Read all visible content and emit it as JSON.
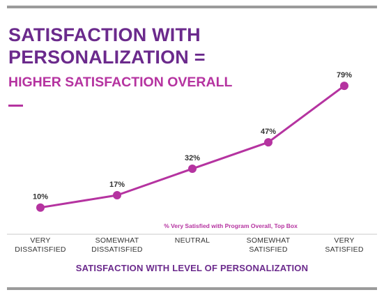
{
  "title_lines": [
    "SATISFACTION WITH",
    "PERSONALIZATION ="
  ],
  "subtitle": "HIGHER SATISFACTION OVERALL",
  "colors": {
    "title": "#6b2a8c",
    "accent": "#b533a0",
    "rule": "#9b9b9b",
    "axis": "#c8c8c8",
    "text": "#333333"
  },
  "chart_data": {
    "type": "line",
    "categories": [
      [
        "VERY",
        "DISSATISFIED"
      ],
      [
        "SOMEWHAT",
        "DISSATISFIED"
      ],
      [
        "NEUTRAL"
      ],
      [
        "SOMEWHAT",
        "SATISFIED"
      ],
      [
        "VERY",
        "SATISFIED"
      ]
    ],
    "values": [
      10,
      17,
      32,
      47,
      79
    ],
    "value_labels": [
      "10%",
      "17%",
      "32%",
      "47%",
      "79%"
    ],
    "annotation": "% Very Satisfied with Program Overall, Top Box",
    "xlabel": "SATISFACTION WITH LEVEL OF PERSONALIZATION",
    "ylabel": "",
    "ylim": [
      0,
      100
    ],
    "grid": false
  }
}
